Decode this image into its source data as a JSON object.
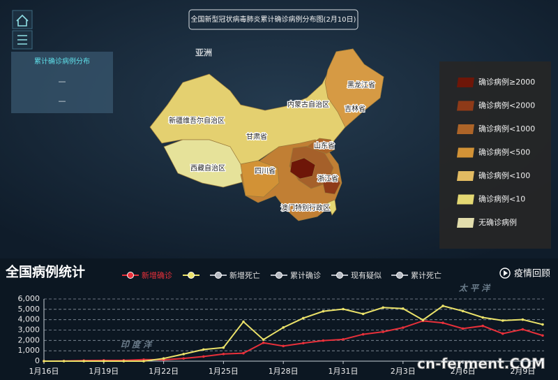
{
  "panel": {
    "title": "累计确诊病例分布",
    "values": [
      "—",
      "—"
    ]
  },
  "map": {
    "title": "全国新型冠状病毒肺炎累计确诊病例分布图(2月10日)",
    "labels": [
      "亚洲",
      "黑龙江省",
      "吉林省",
      "内蒙古自治区",
      "新疆维吾尔自治区",
      "甘肃省",
      "山东省",
      "西藏自治区",
      "四川省",
      "浙江省",
      "澳门特别行政区"
    ],
    "legend": [
      {
        "label": "确诊病例≥2000",
        "color": "#6e1608"
      },
      {
        "label": "确诊病例<2000",
        "color": "#8e3a18"
      },
      {
        "label": "确诊病例<1000",
        "color": "#ad6428"
      },
      {
        "label": "确诊病例<500",
        "color": "#d29236"
      },
      {
        "label": "确诊病例<100",
        "color": "#e2bb62"
      },
      {
        "label": "确诊病例<10",
        "color": "#e4d873"
      },
      {
        "label": "无确诊病例",
        "color": "#e2ddac"
      }
    ]
  },
  "section": {
    "title": "全国病例统计",
    "replay": "疫情回顾"
  },
  "watermark": "cn-ferment.COM",
  "chart_data": {
    "type": "line",
    "oceans": [
      "印 度 洋",
      "太 平 洋"
    ],
    "categories": [
      "1月16日",
      null,
      null,
      "1月19日",
      null,
      null,
      "1月22日",
      null,
      null,
      "1月25日",
      null,
      null,
      "1月28日",
      null,
      null,
      "1月31日",
      null,
      null,
      "2月3日",
      null,
      null,
      "2月6日",
      null,
      null,
      "2月9日",
      null
    ],
    "series": [
      {
        "name": "新增确诊",
        "color": "#e8303a",
        "values": [
          4,
          17,
          59,
          77,
          77,
          149,
          131,
          259,
          444,
          688,
          769,
          1771,
          1459,
          1737,
          1982,
          2102,
          2590,
          2829,
          3235,
          3887,
          3694,
          3143,
          3399,
          2656,
          3062,
          2478
        ]
      },
      {
        "color": "#ece36a",
        "values": [
          0,
          0,
          0,
          0,
          0,
          0,
          257,
          680,
          1118,
          1309,
          3806,
          2077,
          3248,
          4148,
          4812,
          5019,
          4562,
          5173,
          5072,
          3971,
          5328,
          4833,
          4214,
          3916,
          4008,
          3536
        ]
      }
    ],
    "inactive_series": [
      {
        "name": "新增死亡",
        "color": "#b8bcc4"
      },
      {
        "name": "累计确诊",
        "color": "#b8bcc4"
      },
      {
        "name": "现有疑似",
        "color": "#b8bcc4"
      },
      {
        "name": "累计死亡",
        "color": "#b8bcc4"
      }
    ],
    "ylim": [
      0,
      6000
    ],
    "yticks": [
      0,
      {
        "value": 1000,
        "label": "1,000"
      },
      {
        "value": 2000,
        "label": "2,000"
      },
      {
        "value": 3000,
        "label": "3,000"
      },
      {
        "value": 4000,
        "label": "4,000"
      },
      {
        "value": 5000,
        "label": "5,000"
      },
      {
        "value": 6000,
        "label": "6,000"
      }
    ],
    "grid": true
  }
}
